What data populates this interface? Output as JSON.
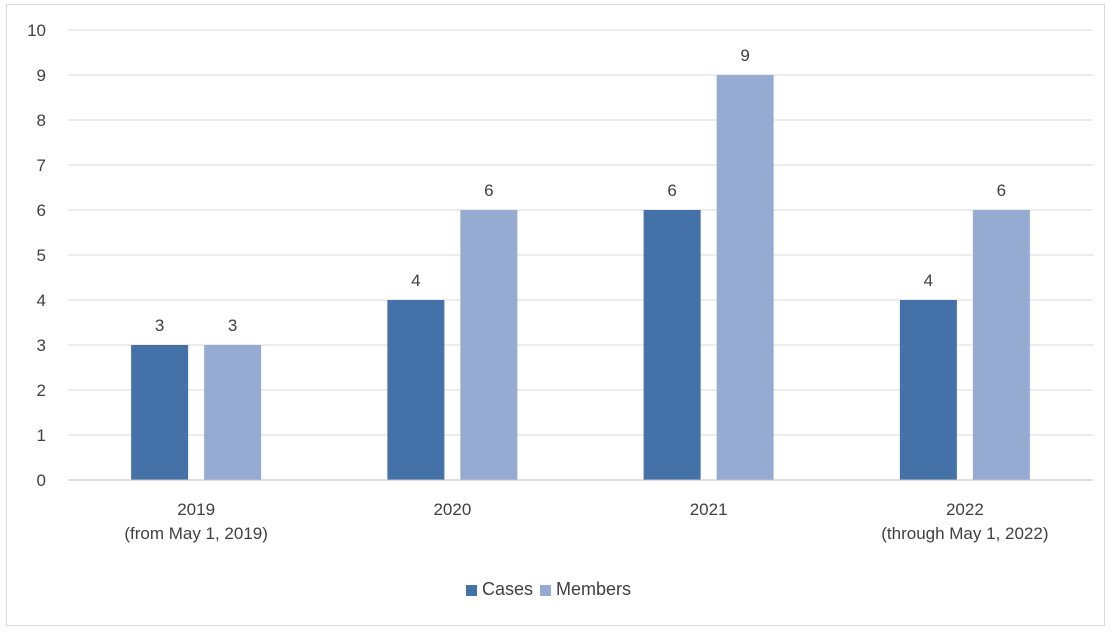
{
  "chart_data": {
    "type": "bar",
    "title": "",
    "xlabel": "",
    "ylabel": "",
    "ylim": [
      0,
      10
    ],
    "yticks": [
      0,
      1,
      2,
      3,
      4,
      5,
      6,
      7,
      8,
      9,
      10
    ],
    "grid": true,
    "legend": "bottom",
    "categories": [
      [
        "2019",
        "(from May 1, 2019)"
      ],
      [
        "2020"
      ],
      [
        "2021"
      ],
      [
        "2022",
        "(through May 1, 2022)"
      ]
    ],
    "series": [
      {
        "name": "Cases",
        "color": "#4472a8",
        "values": [
          3,
          4,
          6,
          4
        ]
      },
      {
        "name": "Members",
        "color": "#95abd2",
        "values": [
          3,
          6,
          9,
          6
        ]
      }
    ]
  }
}
